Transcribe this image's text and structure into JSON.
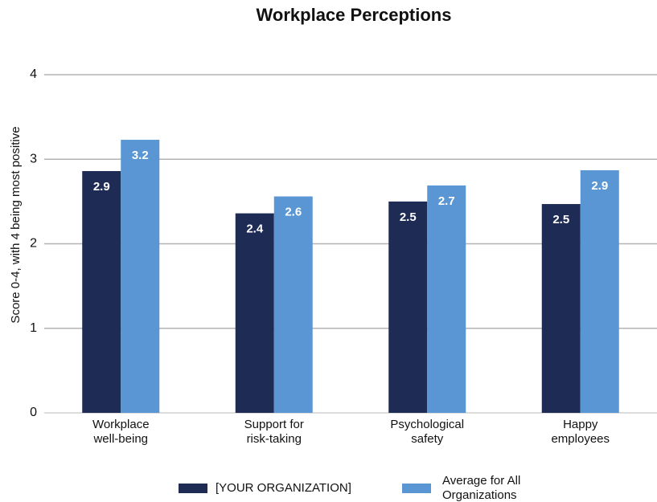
{
  "chart_data": {
    "type": "bar",
    "title": "Workplace Perceptions",
    "y_label": "Score 0-4, with 4 being most positive",
    "categories": [
      "Workplace\nwell-being",
      "Support for\nrisk-taking",
      "Psychological\nsafety",
      "Happy\nemployees"
    ],
    "series": [
      {
        "name": "[YOUR ORGANIZATION]",
        "color": "#1e2b55",
        "values": [
          2.86,
          2.36,
          2.5,
          2.47
        ],
        "value_labels": [
          "2.9",
          "2.4",
          "2.5",
          "2.5"
        ]
      },
      {
        "name": "Average for All\nOrganizations",
        "color": "#5a96d3",
        "values": [
          3.23,
          2.56,
          2.69,
          2.87
        ],
        "value_labels": [
          "3.2",
          "2.6",
          "2.7",
          "2.9"
        ]
      }
    ],
    "ylim": [
      0,
      4
    ],
    "yticks": [
      0,
      1,
      2,
      3,
      4
    ],
    "grid": true,
    "legend": "bottom"
  }
}
